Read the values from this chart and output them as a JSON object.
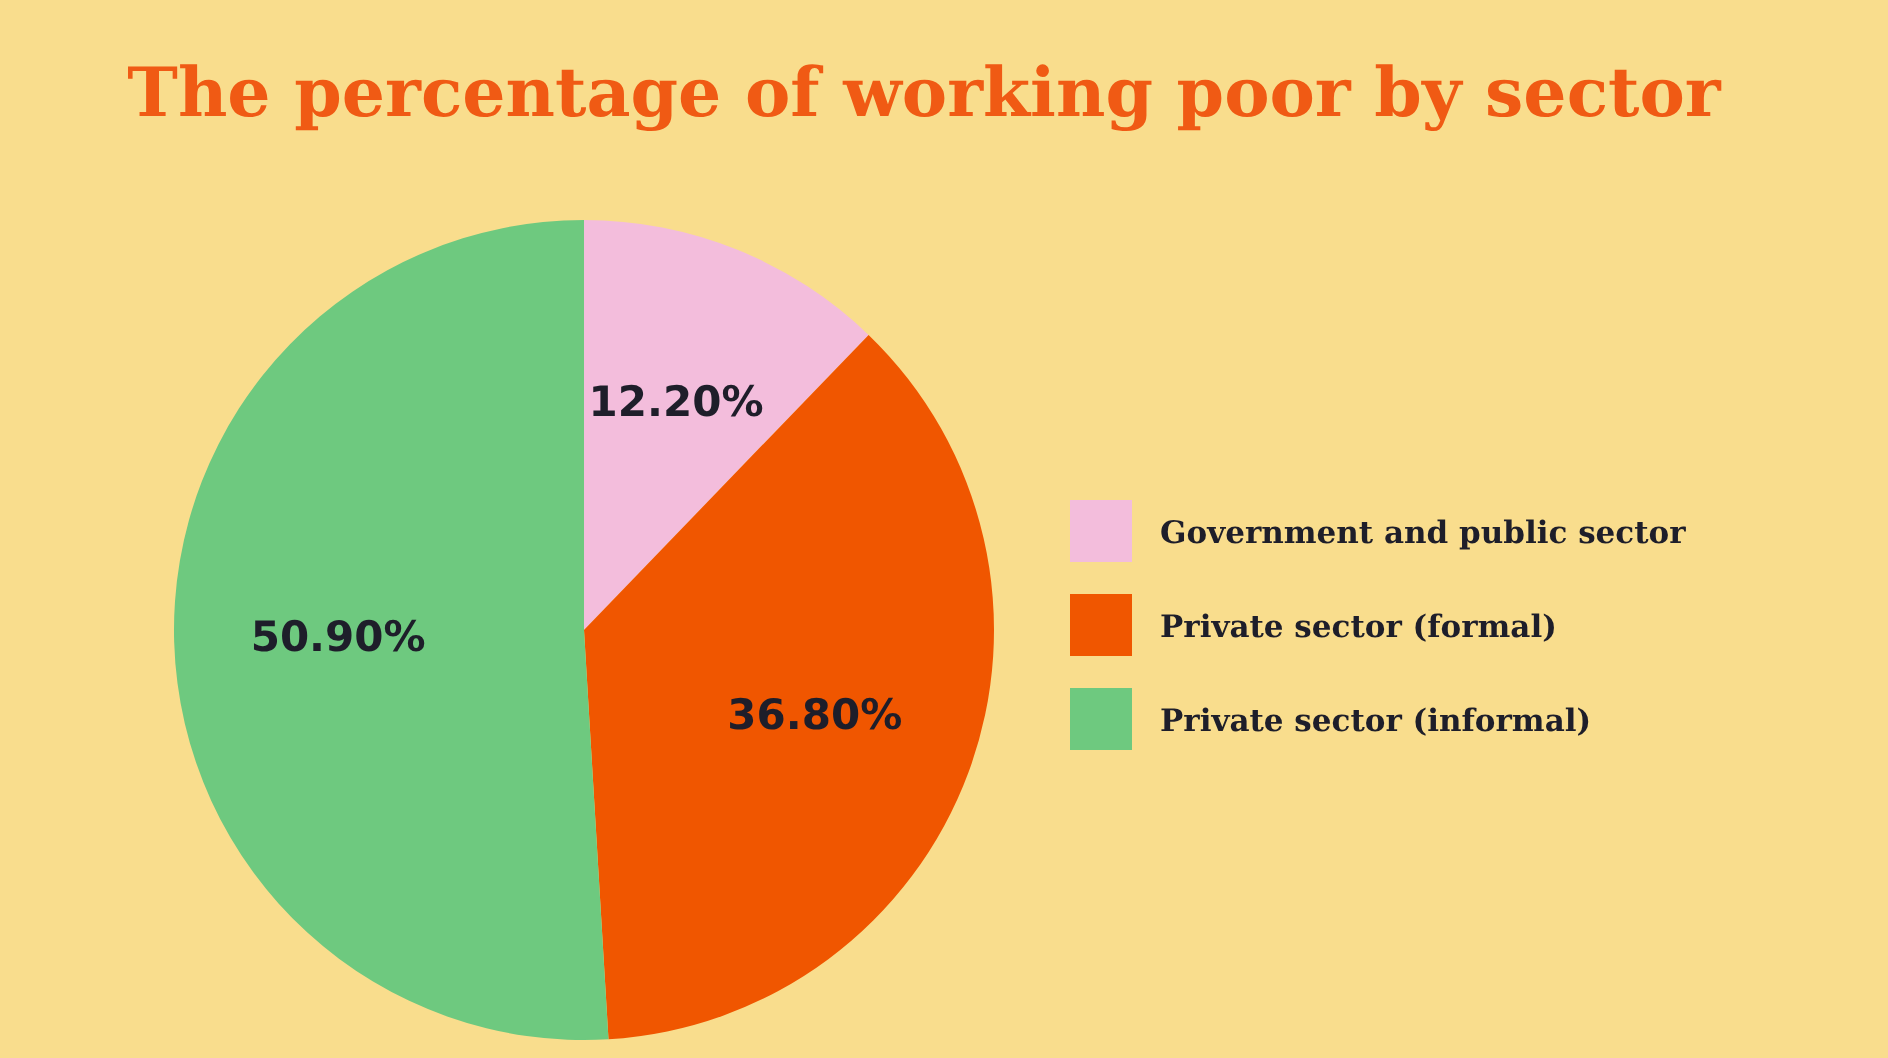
{
  "chart_data": {
    "type": "pie",
    "title": "The percentage of working poor by sector",
    "categories": [
      "Government and public sector",
      "Private sector (formal)",
      "Private sector (informal)"
    ],
    "values": [
      12.2,
      36.8,
      50.9
    ],
    "value_labels": [
      "12.20%",
      "36.80%",
      "50.90%"
    ],
    "colors": [
      "#f3bddc",
      "#f05600",
      "#6ec97f"
    ],
    "legend": "right"
  }
}
